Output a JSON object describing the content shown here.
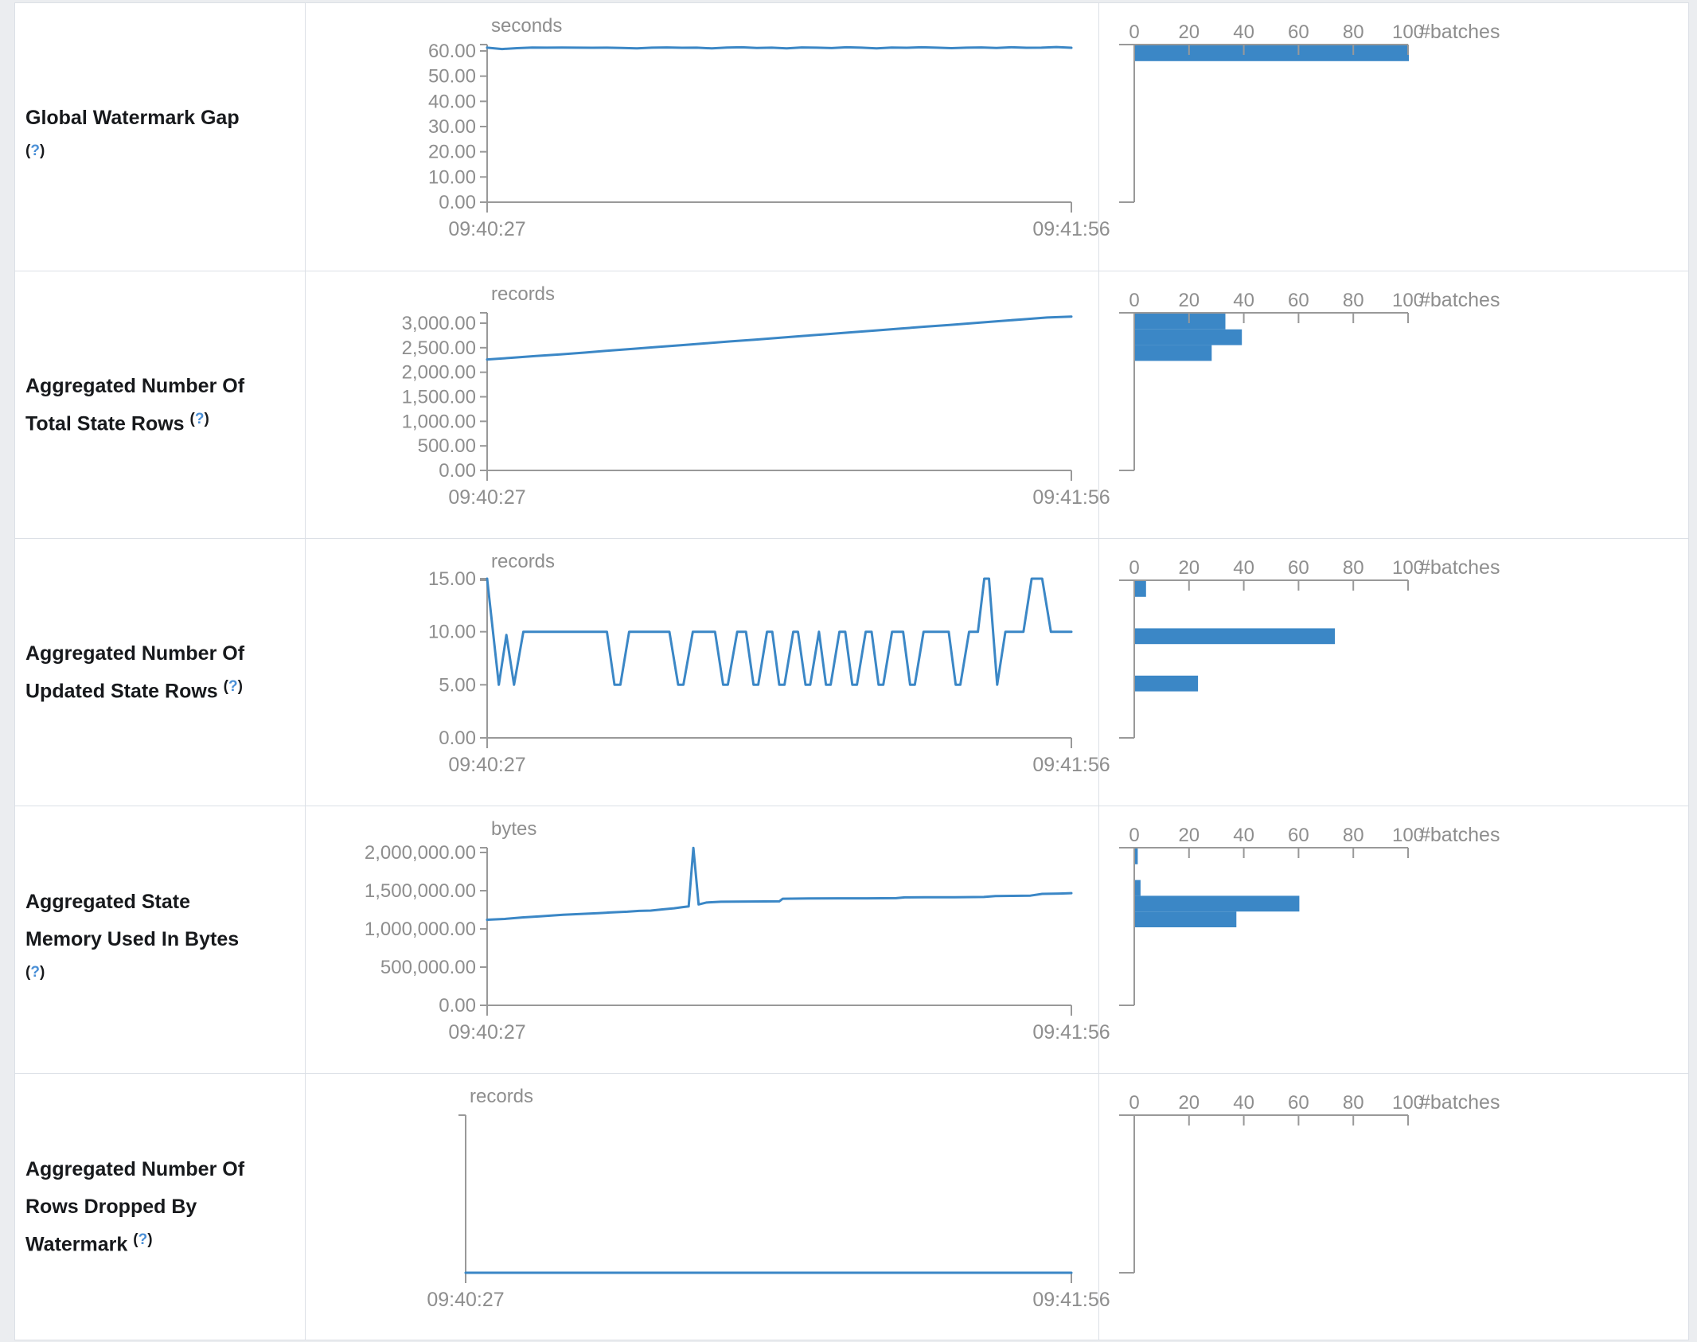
{
  "theme": {
    "line_blue": "#3b87c6",
    "bar_blue": "#3b87c6",
    "axis_gray": "#999999",
    "tick_text_gray": "#8e8e8e",
    "label_text": "#17191c",
    "help_blue": "#4a8fd6",
    "border": "#dce0e6",
    "page_bg": "#ebedf0"
  },
  "time_axis": {
    "start_label": "09:40:27",
    "end_label": "09:41:56"
  },
  "hist_axis": {
    "ticks": [
      0,
      20,
      40,
      60,
      80,
      100
    ],
    "label": "#batches"
  },
  "help_marker": {
    "open": "(",
    "q": "?",
    "close": ")"
  },
  "rows": [
    {
      "label_lines": [
        "Global Watermark Gap",
        "(?)"
      ],
      "chart": {
        "type": "line",
        "unit": "seconds",
        "yticks": [
          0,
          10,
          20,
          30,
          40,
          50,
          60
        ],
        "max_tick_value": 60,
        "max_tick_y": 60,
        "values": [
          61.3,
          60.75,
          61.1,
          61.35,
          61.3,
          61.35,
          61.3,
          61.25,
          61.3,
          61.2,
          61.0,
          61.3,
          61.4,
          61.25,
          61.3,
          61.0,
          61.35,
          61.45,
          61.2,
          61.3,
          61.05,
          61.4,
          61.3,
          61.15,
          61.45,
          61.3,
          61.0,
          61.35,
          61.25,
          61.45,
          61.3,
          61.1,
          61.3,
          61.4,
          61.2,
          61.45,
          61.25,
          61.3,
          61.55,
          61.25
        ]
      },
      "hist_bins": [
        100,
        0,
        0,
        0,
        0,
        0,
        0,
        0,
        0,
        0
      ]
    },
    {
      "label_lines": [
        "Aggregated Number Of",
        "Total State Rows (?)"
      ],
      "chart": {
        "type": "line",
        "unit": "records",
        "yticks": [
          0,
          500,
          1000,
          1500,
          2000,
          2500,
          3000
        ],
        "max_tick_value": 3000,
        "max_tick_y": 65,
        "values": [
          2260,
          2295,
          2330,
          2365,
          2400,
          2440,
          2478,
          2515,
          2552,
          2590,
          2628,
          2665,
          2702,
          2740,
          2778,
          2815,
          2852,
          2890,
          2928,
          2965,
          3002,
          3040,
          3078,
          3115,
          3135
        ]
      },
      "hist_bins": [
        33,
        39,
        28,
        0,
        0,
        0,
        0,
        0,
        0,
        0
      ]
    },
    {
      "label_lines": [
        "Aggregated Number Of",
        "Updated State Rows (?)"
      ],
      "chart": {
        "type": "line",
        "unit": "records",
        "yticks": [
          0,
          5,
          10,
          15
        ],
        "max_tick_value": 15,
        "max_tick_y": 50,
        "points": [
          [
            0,
            15
          ],
          [
            0.02,
            5
          ],
          [
            0.033,
            9.7
          ],
          [
            0.046,
            5
          ],
          [
            0.062,
            10
          ],
          [
            0.205,
            10
          ],
          [
            0.218,
            5
          ],
          [
            0.228,
            5
          ],
          [
            0.243,
            10
          ],
          [
            0.312,
            10
          ],
          [
            0.327,
            5
          ],
          [
            0.336,
            5
          ],
          [
            0.352,
            10
          ],
          [
            0.39,
            10
          ],
          [
            0.404,
            5
          ],
          [
            0.412,
            5
          ],
          [
            0.428,
            10
          ],
          [
            0.443,
            10
          ],
          [
            0.456,
            5
          ],
          [
            0.464,
            5
          ],
          [
            0.479,
            10
          ],
          [
            0.488,
            10
          ],
          [
            0.5,
            5
          ],
          [
            0.509,
            5
          ],
          [
            0.524,
            10
          ],
          [
            0.532,
            10
          ],
          [
            0.545,
            5
          ],
          [
            0.553,
            5
          ],
          [
            0.568,
            10
          ],
          [
            0.58,
            5
          ],
          [
            0.588,
            5
          ],
          [
            0.603,
            10
          ],
          [
            0.613,
            10
          ],
          [
            0.625,
            5
          ],
          [
            0.633,
            5
          ],
          [
            0.648,
            10
          ],
          [
            0.658,
            10
          ],
          [
            0.67,
            5
          ],
          [
            0.678,
            5
          ],
          [
            0.693,
            10
          ],
          [
            0.712,
            10
          ],
          [
            0.724,
            5
          ],
          [
            0.732,
            5
          ],
          [
            0.747,
            10
          ],
          [
            0.79,
            10
          ],
          [
            0.802,
            5
          ],
          [
            0.81,
            5
          ],
          [
            0.825,
            10
          ],
          [
            0.84,
            10
          ],
          [
            0.851,
            15
          ],
          [
            0.859,
            15
          ],
          [
            0.873,
            5
          ],
          [
            0.887,
            10
          ],
          [
            0.918,
            10
          ],
          [
            0.932,
            15
          ],
          [
            0.95,
            15
          ],
          [
            0.965,
            10
          ],
          [
            1,
            10
          ]
        ]
      },
      "hist_bins": [
        4,
        0,
        0,
        73,
        0,
        0,
        23,
        0,
        0,
        0
      ]
    },
    {
      "label_lines": [
        "Aggregated State",
        "Memory Used In Bytes",
        "(?)"
      ],
      "chart": {
        "type": "line",
        "unit": "bytes",
        "yticks": [
          0,
          500000,
          1000000,
          1500000,
          2000000
        ],
        "max_tick_value": 2000000,
        "max_tick_y": 58,
        "points": [
          [
            0,
            1120000
          ],
          [
            0.03,
            1130000
          ],
          [
            0.06,
            1150000
          ],
          [
            0.09,
            1165000
          ],
          [
            0.11,
            1175000
          ],
          [
            0.13,
            1185000
          ],
          [
            0.16,
            1195000
          ],
          [
            0.19,
            1205000
          ],
          [
            0.21,
            1215000
          ],
          [
            0.24,
            1225000
          ],
          [
            0.26,
            1235000
          ],
          [
            0.28,
            1240000
          ],
          [
            0.3,
            1255000
          ],
          [
            0.32,
            1270000
          ],
          [
            0.335,
            1285000
          ],
          [
            0.345,
            1295000
          ],
          [
            0.353,
            2060000
          ],
          [
            0.362,
            1320000
          ],
          [
            0.375,
            1345000
          ],
          [
            0.4,
            1355000
          ],
          [
            0.45,
            1358000
          ],
          [
            0.5,
            1360000
          ],
          [
            0.506,
            1395000
          ],
          [
            0.55,
            1398000
          ],
          [
            0.6,
            1400000
          ],
          [
            0.65,
            1400000
          ],
          [
            0.7,
            1402000
          ],
          [
            0.715,
            1412000
          ],
          [
            0.75,
            1415000
          ],
          [
            0.8,
            1415000
          ],
          [
            0.85,
            1418000
          ],
          [
            0.87,
            1430000
          ],
          [
            0.9,
            1432000
          ],
          [
            0.93,
            1435000
          ],
          [
            0.95,
            1458000
          ],
          [
            0.98,
            1462000
          ],
          [
            1,
            1468000
          ]
        ]
      },
      "hist_bins": [
        1,
        0,
        2,
        60,
        37,
        0,
        0,
        0,
        0,
        0
      ]
    },
    {
      "label_lines": [
        "Aggregated Number Of",
        "Rows Dropped By",
        "Watermark (?)"
      ],
      "chart": {
        "type": "line",
        "unit": "records",
        "yticks": [],
        "max_tick_value": null,
        "max_tick_y": null,
        "values": [
          0,
          0
        ]
      },
      "hist_bins": [
        0,
        0,
        0,
        0,
        0,
        0,
        0,
        0,
        0,
        0
      ]
    }
  ]
}
